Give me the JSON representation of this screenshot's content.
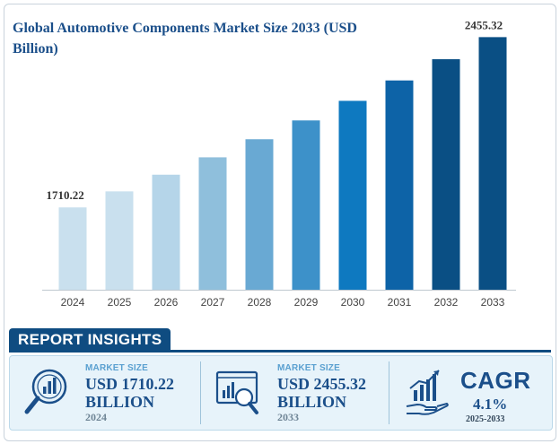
{
  "chart_data": {
    "type": "bar",
    "title": "Global Automotive Components Market Size 2033 (USD Billion)",
    "categories": [
      "2024",
      "2025",
      "2026",
      "2027",
      "2028",
      "2029",
      "2030",
      "2031",
      "2032",
      "2033"
    ],
    "values": [
      1710.22,
      1780.34,
      1853.33,
      1929.32,
      2008.42,
      2090.77,
      2176.49,
      2265.73,
      2358.62,
      2455.32
    ],
    "data_labels": [
      {
        "index": 0,
        "text": "1710.22"
      },
      {
        "index": 9,
        "text": "2455.32"
      }
    ],
    "colors": [
      "#c9e0ee",
      "#c9e0ee",
      "#b5d5e9",
      "#8fbfdc",
      "#69a9d3",
      "#3d91c9",
      "#0e79c0",
      "#0d63a7",
      "#0a4f84",
      "#0a4f84"
    ],
    "xlabel": "",
    "ylabel": "",
    "ylim": [
      1350,
      2500
    ]
  },
  "insights": {
    "heading": "REPORT INSIGHTS",
    "card1": {
      "label": "MARKET SIZE",
      "value_line1": "USD 1710.22",
      "value_line2": "BILLION",
      "year": "2024",
      "icon": "magnifier-chart-icon"
    },
    "card2": {
      "label": "MARKET SIZE",
      "value_line1": "USD 2455.32",
      "value_line2": "BILLION",
      "year": "2033",
      "icon": "monitor-chart-icon"
    },
    "card3": {
      "title": "CAGR",
      "value": "4.1%",
      "period": "2025-2033",
      "icon": "growth-hand-icon"
    }
  }
}
